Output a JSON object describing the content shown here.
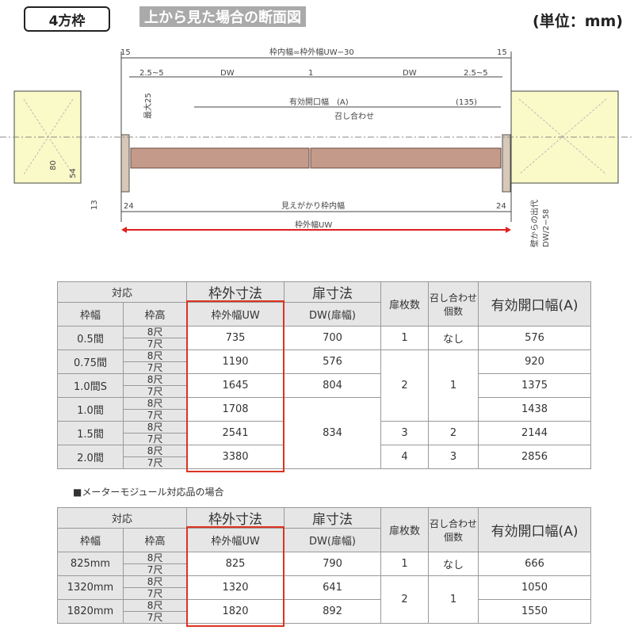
{
  "header": {
    "badge": "4方枠",
    "title": "上から見た場合の断面図",
    "unit": "(単位：mm)"
  },
  "diagram": {
    "labels": {
      "left15": "15",
      "right15": "15",
      "inner_width": "枠内幅=枠外幅UW−30",
      "gap_left": "2.5~5",
      "dw_left": "DW",
      "center": "1",
      "dw_right": "DW",
      "gap_right": "2.5~5",
      "max25": "最大25",
      "effective": "有効開口幅　(A)",
      "p135": "(135)",
      "meeting": "召し合わせ",
      "d80": "80",
      "d54": "54",
      "d13": "13",
      "left24": "24",
      "right24": "24",
      "visible_inner": "見えがかり枠内幅",
      "outer_uw": "枠外幅UW",
      "wall_offset": "壁からの出代",
      "wall_offset_formula": "DW/2−58"
    },
    "colors": {
      "door": "#c49a8a",
      "wall": "#fafac8",
      "arrow": "#e02020"
    }
  },
  "table1": {
    "h_taio": "対応",
    "h_outer": "枠外寸法",
    "h_door": "扉寸法",
    "h_count": "扉枚数",
    "h_meet": "召し合わせ個数",
    "h_eff": "有効開口幅(A)",
    "h_width": "枠幅",
    "h_height": "枠高",
    "h_uw": "枠外幅UW",
    "h_dw": "DW(扉幅)",
    "rows": [
      {
        "w": "0.5間",
        "h8": "8尺",
        "h7": "7尺",
        "uw": "735",
        "dw": "700",
        "cnt": "1",
        "meet": "なし",
        "a": "576"
      },
      {
        "w": "0.75間",
        "h8": "8尺",
        "h7": "7尺",
        "uw": "1190",
        "dw": "576",
        "cnt": "2",
        "meet": "1",
        "a": "920"
      },
      {
        "w": "1.0間S",
        "h8": "8尺",
        "h7": "7尺",
        "uw": "1645",
        "dw": "804",
        "a": "1375"
      },
      {
        "w": "1.0間",
        "h8": "8尺",
        "h7": "7尺",
        "uw": "1708",
        "dw": "834",
        "a": "1438"
      },
      {
        "w": "1.5間",
        "h8": "8尺",
        "h7": "7尺",
        "uw": "2541",
        "cnt": "3",
        "meet": "2",
        "a": "2144"
      },
      {
        "w": "2.0間",
        "h8": "8尺",
        "h7": "7尺",
        "uw": "3380",
        "cnt": "4",
        "meet": "3",
        "a": "2856"
      }
    ]
  },
  "note": "■メーターモジュール対応品の場合",
  "table2": {
    "rows": [
      {
        "w": "825mm",
        "h8": "8尺",
        "h7": "7尺",
        "uw": "825",
        "dw": "790",
        "cnt": "1",
        "meet": "なし",
        "a": "666"
      },
      {
        "w": "1320mm",
        "h8": "8尺",
        "h7": "7尺",
        "uw": "1320",
        "dw": "641",
        "cnt": "2",
        "meet": "1",
        "a": "1050"
      },
      {
        "w": "1820mm",
        "h8": "8尺",
        "h7": "7尺",
        "uw": "1820",
        "dw": "892",
        "a": "1550"
      }
    ]
  }
}
